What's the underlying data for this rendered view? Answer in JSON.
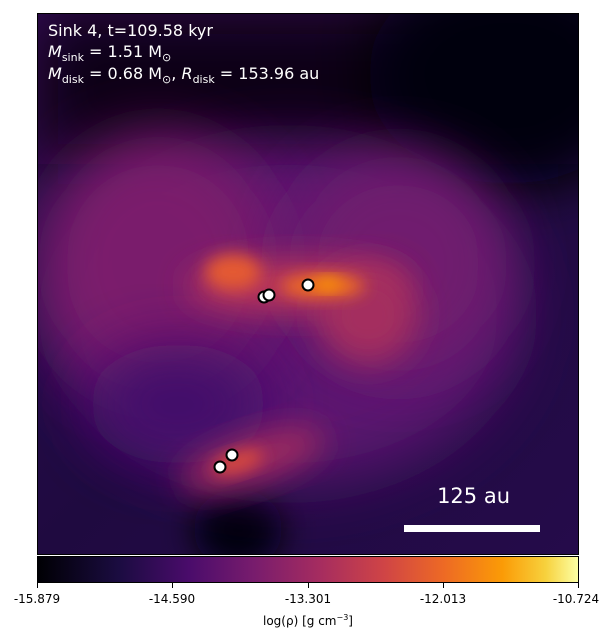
{
  "annotations": {
    "line1": "Sink 4, t=109.58 kyr",
    "msink_symbol": "M",
    "msink_sub": "sink",
    "msink_value": " = 1.51 M",
    "msink_unit_sub": "⊙",
    "mdisk_symbol": "M",
    "mdisk_sub": "disk",
    "mdisk_value": " = 0.68 M",
    "mdisk_unit_sub": "⊙",
    "rdisk_sep": ", ",
    "rdisk_symbol": "R",
    "rdisk_sub": "disk",
    "rdisk_value": " = 153.96 au"
  },
  "scale_bar": {
    "label": "125 au"
  },
  "colorbar": {
    "colormap": "inferno",
    "ticks": [
      "-15.879",
      "-14.590",
      "-13.301",
      "-12.013",
      "-10.724"
    ],
    "label_prefix": "log(ρ) [g cm",
    "label_exp": "−3",
    "label_suffix": "]"
  },
  "sinks": [
    {
      "name": "sink-a"
    },
    {
      "name": "sink-b"
    },
    {
      "name": "sink-c"
    },
    {
      "name": "sink-d"
    },
    {
      "name": "sink-e"
    }
  ]
}
